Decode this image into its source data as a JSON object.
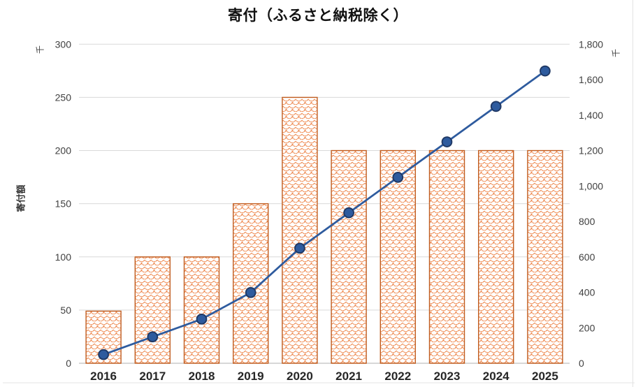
{
  "chart_data": {
    "type": "bar",
    "title": "寄付（ふるさと納税除く）",
    "categories": [
      "2016",
      "2017",
      "2018",
      "2019",
      "2020",
      "2021",
      "2022",
      "2023",
      "2024",
      "2025"
    ],
    "series": [
      {
        "name": "bar",
        "type": "bar",
        "axis": "left",
        "values": [
          49,
          100,
          100,
          150,
          250,
          200,
          200,
          200,
          200,
          200
        ]
      },
      {
        "name": "line",
        "type": "line",
        "axis": "right",
        "values": [
          49,
          149,
          249,
          399,
          649,
          849,
          1049,
          1249,
          1449,
          1649
        ]
      }
    ],
    "left_axis": {
      "title": "寄付額",
      "unit": "千",
      "min": 0,
      "max": 300,
      "step": 50,
      "tick_labels": [
        "0",
        "50",
        "100",
        "150",
        "200",
        "250",
        "300"
      ]
    },
    "right_axis": {
      "unit": "千",
      "min": 0,
      "max": 1800,
      "step": 200,
      "tick_labels": [
        "0",
        "200",
        "400",
        "600",
        "800",
        "1,000",
        "1,200",
        "1,400",
        "1,600",
        "1,800"
      ]
    },
    "legend": "none",
    "grid": true
  },
  "colors": {
    "bar_pattern": "#EE8B52",
    "bar_border": "#C05C1F",
    "line": "#2E5B9E",
    "marker_fill": "#2E5B9E",
    "marker_border": "#1F3864",
    "gridline": "#D9D9D9",
    "axis_line": "#BFBFBF",
    "sheet_line": "#E3E3E3",
    "tick_text": "#404040",
    "category_text": "#262626",
    "title_text": "#111111"
  }
}
